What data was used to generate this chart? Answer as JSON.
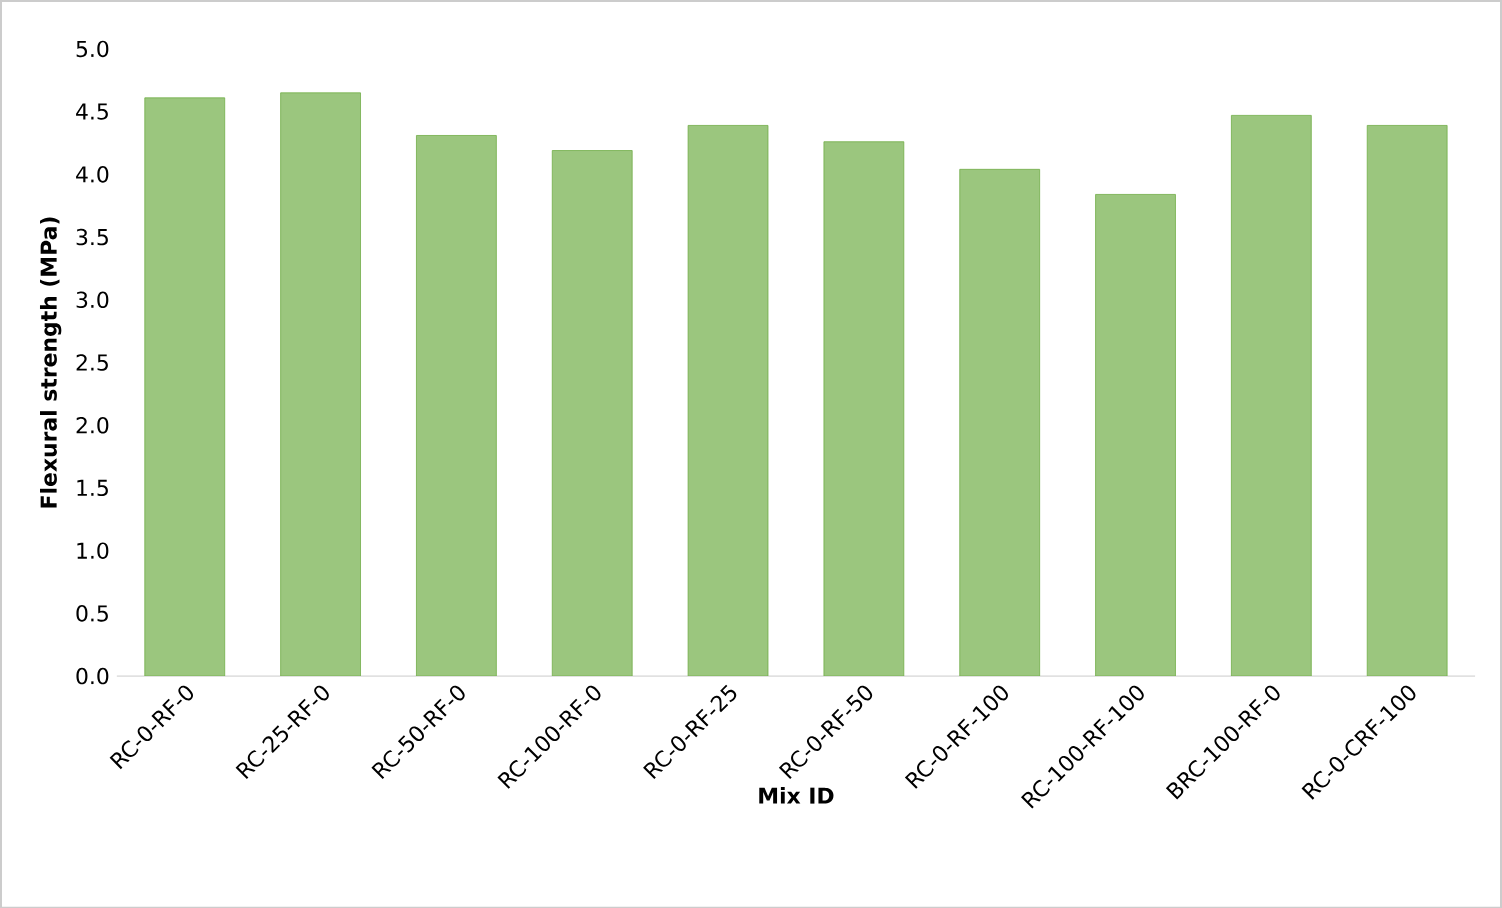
{
  "chart_data": {
    "type": "bar",
    "xlabel": "Mix ID",
    "ylabel": "Flexural strength (MPa)",
    "categories": [
      "RC-0-RF-0",
      "RC-25-RF-0",
      "RC-50-RF-0",
      "RC-100-RF-0",
      "RC-0-RF-25",
      "RC-0-RF-50",
      "RC-0-RF-100",
      "RC-100-RF-100",
      "BRC-100-RF-0",
      "RC-0-CRF-100"
    ],
    "values": [
      4.61,
      4.65,
      4.31,
      4.19,
      4.39,
      4.26,
      4.04,
      3.84,
      4.47,
      4.39
    ],
    "color": "#70ad47",
    "ylim": [
      0,
      5
    ],
    "yticks": [
      {
        "value": 0,
        "label": "0.0"
      },
      {
        "value": 0.5,
        "label": "0.5"
      },
      {
        "value": 1,
        "label": "1.0"
      },
      {
        "value": 1.5,
        "label": "1.5"
      },
      {
        "value": 2,
        "label": "2.0"
      },
      {
        "value": 2.5,
        "label": "2.5"
      },
      {
        "value": 3,
        "label": "3.0"
      },
      {
        "value": 3.5,
        "label": "3.5"
      },
      {
        "value": 4,
        "label": "4.0"
      },
      {
        "value": 4.5,
        "label": "4.5"
      },
      {
        "value": 5,
        "label": "5.0"
      }
    ],
    "tick_labels": "xy"
  }
}
